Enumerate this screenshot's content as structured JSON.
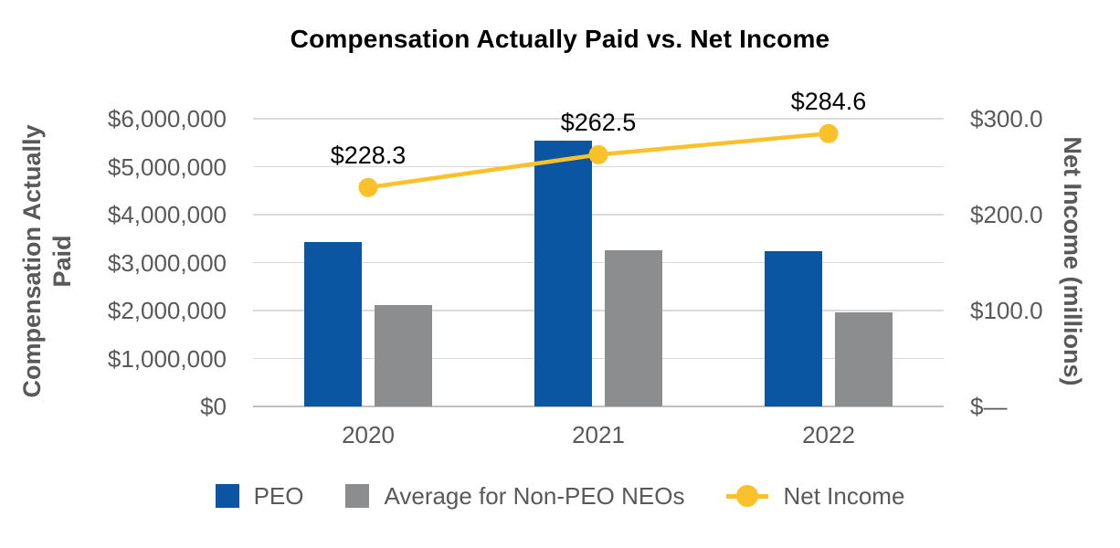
{
  "title": "Compensation Actually Paid vs. Net Income",
  "left_axis": {
    "title_lines": [
      "Compensation Actually",
      "Paid"
    ],
    "ticks": [
      "$6,000,000",
      "$5,000,000",
      "$4,000,000",
      "$3,000,000",
      "$2,000,000",
      "$1,000,000",
      "$0"
    ],
    "range": [
      0,
      6000000
    ]
  },
  "right_axis": {
    "title": "Net Income (millions)",
    "ticks": [
      "$300.0",
      "$200.0",
      "$100.0",
      "$—"
    ],
    "range": [
      0,
      300
    ]
  },
  "x_axis": {
    "categories": [
      "2020",
      "2021",
      "2022"
    ]
  },
  "chart_data": {
    "type": "combo-bar-line",
    "title": "Compensation Actually Paid vs. Net Income",
    "categories": [
      "2020",
      "2021",
      "2022"
    ],
    "series": [
      {
        "name": "PEO",
        "key": "peo",
        "type": "bar",
        "axis": "left",
        "color": "#0A56A3",
        "values": [
          3430000,
          5540000,
          3240000
        ]
      },
      {
        "name": "Average for Non-PEO NEOs",
        "key": "non-peo-neos",
        "type": "bar",
        "axis": "left",
        "color": "#8B8D8F",
        "values": [
          2110000,
          3260000,
          1960000
        ]
      },
      {
        "name": "Net Income",
        "key": "net-income",
        "type": "line",
        "axis": "right",
        "color": "#FBC12B",
        "values": [
          228.3,
          262.5,
          284.6
        ],
        "data_labels": [
          "$228.3",
          "$262.5",
          "$284.6"
        ]
      }
    ],
    "left_ylabel": "Compensation Actually Paid",
    "right_ylabel": "Net Income (millions)",
    "left_ylim": [
      0,
      6000000
    ],
    "right_ylim": [
      0,
      300
    ],
    "grid": true,
    "legend_position": "bottom"
  },
  "legend": {
    "items": [
      {
        "label": "PEO",
        "key": "peo",
        "marker": "square",
        "color": "#0A56A3"
      },
      {
        "label": "Average for Non-PEO NEOs",
        "key": "non-peo-neos",
        "marker": "square",
        "color": "#8B8D8F"
      },
      {
        "label": "Net Income",
        "key": "net-income",
        "marker": "line-dot",
        "color": "#FBC12B"
      }
    ]
  },
  "colors": {
    "peo_bar": "#0A56A3",
    "non_peo_bar": "#8B8D8F",
    "net_income_line": "#FBC12B",
    "gridline": "#DADADA",
    "baseline": "#C0C0C0",
    "axis_text": "#595959",
    "title_text": "#000000",
    "data_label_text": "#000000"
  }
}
